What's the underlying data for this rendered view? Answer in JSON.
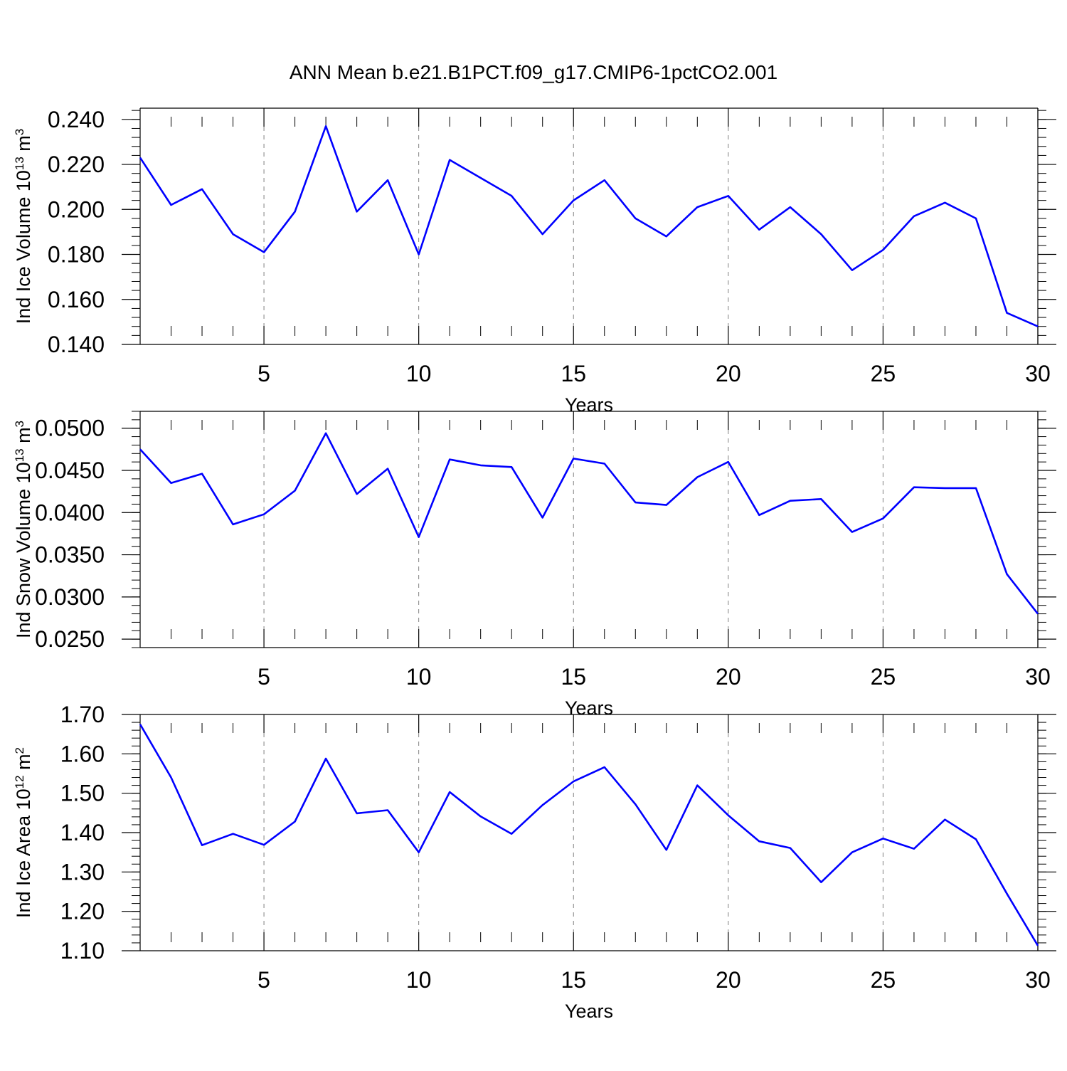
{
  "title": "ANN Mean b.e21.B1PCT.f09_g17.CMIP6-1pctCO2.001",
  "colors": {
    "line": "#0000ff",
    "axis": "#000000",
    "grid": "#808080"
  },
  "chart_data": [
    {
      "type": "line",
      "xlabel": "Years",
      "ylabel": {
        "prefix": "Ind Ice Volume 10",
        "exp": "13",
        "unit": " m",
        "unit_exp": "3"
      },
      "xlim": [
        1,
        30
      ],
      "ylim": [
        0.14,
        0.245
      ],
      "xticks": [
        "5",
        "10",
        "15",
        "20",
        "25",
        "30"
      ],
      "yticks": [
        "0.140",
        "0.160",
        "0.180",
        "0.200",
        "0.220",
        "0.240"
      ],
      "grid": "vertical-dashed",
      "x": [
        1,
        2,
        3,
        4,
        5,
        6,
        7,
        8,
        9,
        10,
        11,
        12,
        13,
        14,
        15,
        16,
        17,
        18,
        19,
        20,
        21,
        22,
        23,
        24,
        25,
        26,
        27,
        28,
        29,
        30
      ],
      "values": [
        0.223,
        0.202,
        0.209,
        0.189,
        0.181,
        0.199,
        0.237,
        0.199,
        0.213,
        0.18,
        0.222,
        0.214,
        0.206,
        0.189,
        0.204,
        0.213,
        0.196,
        0.188,
        0.201,
        0.206,
        0.191,
        0.201,
        0.189,
        0.173,
        0.182,
        0.197,
        0.203,
        0.196,
        0.154,
        0.148
      ]
    },
    {
      "type": "line",
      "xlabel": "Years",
      "ylabel": {
        "prefix": "Ind Snow Volume 10",
        "exp": "13",
        "unit": " m",
        "unit_exp": "3"
      },
      "xlim": [
        1,
        30
      ],
      "ylim": [
        0.024,
        0.052
      ],
      "xticks": [
        "5",
        "10",
        "15",
        "20",
        "25",
        "30"
      ],
      "yticks": [
        "0.0250",
        "0.0300",
        "0.0350",
        "0.0400",
        "0.0450",
        "0.0500"
      ],
      "grid": "vertical-dashed",
      "x": [
        1,
        2,
        3,
        4,
        5,
        6,
        7,
        8,
        9,
        10,
        11,
        12,
        13,
        14,
        15,
        16,
        17,
        18,
        19,
        20,
        21,
        22,
        23,
        24,
        25,
        26,
        27,
        28,
        29,
        30
      ],
      "values": [
        0.0475,
        0.0435,
        0.0446,
        0.0386,
        0.0398,
        0.0426,
        0.0494,
        0.0422,
        0.0452,
        0.0371,
        0.0463,
        0.0456,
        0.0454,
        0.0394,
        0.0464,
        0.0458,
        0.0412,
        0.0409,
        0.0442,
        0.046,
        0.0397,
        0.0414,
        0.0416,
        0.0377,
        0.0393,
        0.043,
        0.0429,
        0.0429,
        0.0327,
        0.028
      ]
    },
    {
      "type": "line",
      "xlabel": "Years",
      "ylabel": {
        "prefix": "Ind Ice Area 10",
        "exp": "12",
        "unit": " m",
        "unit_exp": "2"
      },
      "xlim": [
        1,
        30
      ],
      "ylim": [
        1.1,
        1.7
      ],
      "xticks": [
        "5",
        "10",
        "15",
        "20",
        "25",
        "30"
      ],
      "yticks": [
        "1.10",
        "1.20",
        "1.30",
        "1.40",
        "1.50",
        "1.60",
        "1.70"
      ],
      "grid": "vertical-dashed",
      "x": [
        1,
        2,
        3,
        4,
        5,
        6,
        7,
        8,
        9,
        10,
        11,
        12,
        13,
        14,
        15,
        16,
        17,
        18,
        19,
        20,
        21,
        22,
        23,
        24,
        25,
        26,
        27,
        28,
        29,
        30
      ],
      "values": [
        1.675,
        1.54,
        1.368,
        1.397,
        1.369,
        1.428,
        1.588,
        1.449,
        1.457,
        1.35,
        1.503,
        1.441,
        1.397,
        1.47,
        1.53,
        1.566,
        1.472,
        1.356,
        1.52,
        1.444,
        1.378,
        1.361,
        1.274,
        1.35,
        1.385,
        1.359,
        1.433,
        1.383,
        1.245,
        1.113
      ]
    }
  ]
}
